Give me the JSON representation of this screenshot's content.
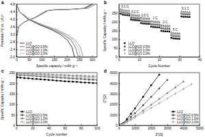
{
  "chart_data": [
    {
      "type": "line",
      "title": "a",
      "x_label": "Specific capacity / mAh g⁻¹",
      "y_label": "Potential / V vs. Li/Li⁺",
      "xlim": [
        0,
        320
      ],
      "xticks": [
        0,
        50,
        100,
        150,
        200,
        250,
        300
      ],
      "ylim": [
        2.0,
        4.8
      ],
      "yticks": [
        {
          "value": 2.0,
          "label": "2.0"
        },
        2.4,
        2.8,
        3.2,
        3.6,
        {
          "value": 4.0,
          "label": "4.0"
        },
        4.4,
        4.8
      ],
      "legend": "lower left",
      "series": [
        {
          "name": "LLO",
          "color": "#000000",
          "charge_x": [
            0,
            9,
            30,
            75,
            120,
            150,
            210,
            270,
            300
          ],
          "charge_values": [
            3.0,
            3.6,
            3.85,
            4.1,
            4.45,
            4.5,
            4.52,
            4.58,
            4.8
          ],
          "discharge_x": [
            0,
            12,
            46,
            92,
            138,
            173,
            202,
            221,
            230
          ],
          "discharge_values": [
            4.8,
            4.4,
            4.0,
            3.7,
            3.45,
            3.2,
            2.9,
            2.5,
            2.0
          ]
        },
        {
          "name": "LLO@GO 0.5%",
          "color": "#4d4d4d",
          "charge_x": [
            0,
            9,
            31,
            76,
            122,
            153,
            214,
            275,
            305
          ],
          "charge_values": [
            3.0,
            3.6,
            3.85,
            4.1,
            4.45,
            4.5,
            4.52,
            4.58,
            4.8
          ],
          "discharge_x": [
            0,
            12,
            49,
            98,
            147,
            184,
            216,
            235,
            245
          ],
          "discharge_values": [
            4.8,
            4.4,
            4.0,
            3.7,
            3.45,
            3.2,
            2.9,
            2.5,
            2.0
          ]
        },
        {
          "name": "LLO@GO 1.0%",
          "color": "#7f7f7f",
          "charge_x": [
            0,
            9,
            32,
            79,
            126,
            158,
            221,
            284,
            315
          ],
          "charge_values": [
            3.0,
            3.6,
            3.85,
            4.1,
            4.45,
            4.5,
            4.52,
            4.58,
            4.8
          ],
          "discharge_x": [
            0,
            13,
            53,
            106,
            159,
            199,
            233,
            254,
            265
          ],
          "discharge_values": [
            4.8,
            4.4,
            4.0,
            3.7,
            3.45,
            3.2,
            2.9,
            2.5,
            2.0
          ]
        },
        {
          "name": "LLO@GO 2.0%",
          "color": "#b0b0b0",
          "charge_x": [
            0,
            9,
            30,
            74,
            118,
            148,
            207,
            266,
            295
          ],
          "charge_values": [
            3.0,
            3.6,
            3.85,
            4.1,
            4.45,
            4.5,
            4.52,
            4.58,
            4.8
          ],
          "discharge_x": [
            0,
            13,
            51,
            102,
            153,
            191,
            224,
            245,
            255
          ],
          "discharge_values": [
            4.8,
            4.4,
            4.0,
            3.7,
            3.45,
            3.2,
            2.9,
            2.5,
            2.0
          ]
        }
      ]
    },
    {
      "type": "scatter",
      "title": "b",
      "x_label": "Cycle Number",
      "y_label": "Specific Capacity / mAh g⁻¹",
      "xlim": [
        0,
        40
      ],
      "xticks": [
        0,
        10,
        20,
        30,
        40
      ],
      "ylim": [
        0,
        300
      ],
      "yticks": [
        0,
        50,
        100,
        150,
        200,
        250
      ],
      "legend": "lower left",
      "annotations": [
        "0.1 C",
        "0.2 C",
        "0.5 C",
        "1 C",
        "2 C",
        "5 C",
        "0.1 C"
      ],
      "x": [
        1,
        2,
        3,
        4,
        5,
        6,
        7,
        8,
        9,
        10,
        11,
        12,
        13,
        14,
        15,
        16,
        17,
        18,
        19,
        20,
        21,
        22,
        23,
        24,
        25,
        26,
        27,
        28,
        29,
        30,
        31,
        32,
        33,
        34,
        35
      ],
      "series": [
        {
          "name": "LLO",
          "color": "#000000",
          "marker": "square",
          "values": [
            245,
            240,
            238,
            237,
            236,
            212,
            210,
            209,
            208,
            207,
            192,
            190,
            189,
            188,
            188,
            172,
            170,
            169,
            168,
            168,
            148,
            146,
            145,
            145,
            144,
            108,
            105,
            104,
            103,
            103,
            230,
            228,
            228,
            227,
            227
          ]
        },
        {
          "name": "LLO@GO 0.5%",
          "color": "#4d4d4d",
          "marker": "circle",
          "values": [
            258,
            252,
            250,
            249,
            248,
            224,
            222,
            221,
            220,
            220,
            205,
            203,
            202,
            201,
            201,
            186,
            184,
            183,
            183,
            182,
            163,
            161,
            160,
            160,
            159,
            122,
            119,
            118,
            118,
            117,
            245,
            243,
            243,
            242,
            242
          ]
        },
        {
          "name": "LLO@GO 1.0%",
          "color": "#7f7f7f",
          "marker": "triangle",
          "values": [
            270,
            265,
            263,
            262,
            262,
            240,
            238,
            237,
            236,
            236,
            222,
            220,
            219,
            218,
            218,
            203,
            201,
            200,
            200,
            199,
            180,
            178,
            177,
            177,
            176,
            138,
            135,
            134,
            134,
            133,
            258,
            256,
            256,
            255,
            255
          ]
        },
        {
          "name": "LLO@GO 2.0%",
          "color": "#b0b0b0",
          "marker": "diamond",
          "values": [
            264,
            259,
            257,
            256,
            255,
            232,
            230,
            229,
            228,
            228,
            213,
            211,
            210,
            209,
            209,
            194,
            192,
            191,
            191,
            190,
            171,
            169,
            168,
            168,
            167,
            128,
            125,
            124,
            124,
            123,
            252,
            250,
            250,
            249,
            249
          ]
        }
      ]
    },
    {
      "type": "line",
      "title": "c",
      "x_label": "Cycle number",
      "y_label": "Specific Capacity / mAh g⁻¹",
      "xlim": [
        0,
        100
      ],
      "xticks": [
        0,
        20,
        40,
        60,
        80,
        100
      ],
      "ylim": [
        0,
        250
      ],
      "yticks": [
        0,
        50,
        100,
        150,
        200,
        250
      ],
      "legend": "lower left",
      "x": [
        1,
        5,
        10,
        15,
        20,
        25,
        30,
        35,
        40,
        45,
        50,
        55,
        60,
        65,
        70,
        75,
        80,
        85,
        90,
        95,
        100
      ],
      "series": [
        {
          "name": "LLO",
          "color": "#000000",
          "marker": "square",
          "values": [
            228,
            226,
            224,
            223,
            221,
            220,
            218,
            217,
            215,
            214,
            212,
            211,
            209,
            208,
            207,
            206,
            204,
            203,
            202,
            201,
            200
          ]
        },
        {
          "name": "LLO@GO 0.5%",
          "color": "#4d4d4d",
          "marker": "circle",
          "values": [
            240,
            238,
            237,
            236,
            235,
            233,
            232,
            231,
            230,
            228,
            227,
            226,
            225,
            223,
            222,
            221,
            220,
            219,
            217,
            216,
            215
          ]
        },
        {
          "name": "LLO@GO 1.0%",
          "color": "#7f7f7f",
          "marker": "triangle",
          "values": [
            248,
            247,
            246,
            245,
            244,
            243,
            243,
            242,
            241,
            240,
            239,
            239,
            238,
            237,
            236,
            236,
            235,
            234,
            233,
            233,
            232
          ]
        },
        {
          "name": "LLO@GO 2.0%",
          "color": "#b0b0b0",
          "marker": "diamond",
          "values": [
            244,
            243,
            241,
            240,
            239,
            238,
            237,
            236,
            234,
            233,
            232,
            231,
            230,
            229,
            228,
            228,
            227,
            226,
            225,
            225,
            224
          ]
        }
      ]
    },
    {
      "type": "line",
      "title": "d",
      "x_label": "Z'(Ω)",
      "y_label": "-Z''(Ω)",
      "xlim": [
        0,
        5000
      ],
      "xticks": [
        0,
        1000,
        2000,
        3000,
        4000,
        5000
      ],
      "ylim": [
        0,
        5000
      ],
      "yticks": [
        0,
        1000,
        2000,
        3000,
        4000,
        5000
      ],
      "legend": "lower right",
      "x": [
        100,
        200,
        300,
        500,
        750,
        1000,
        1500,
        2000,
        2500,
        3000,
        3500,
        4000,
        4500
      ],
      "series": [
        {
          "name": "LLO",
          "color": "#000000",
          "marker": "square",
          "values": [
            80,
            150,
            250,
            600,
            1100,
            1600,
            2700,
            3800,
            4800,
            null,
            null,
            null,
            null
          ]
        },
        {
          "name": "LLO@GO 0.5%",
          "color": "#4d4d4d",
          "marker": "circle",
          "values": [
            60,
            120,
            200,
            450,
            800,
            1150,
            1900,
            2700,
            3500,
            4300,
            null,
            null,
            null
          ]
        },
        {
          "name": "LLO@GO 1.0%",
          "color": "#7f7f7f",
          "marker": "triangle",
          "values": [
            50,
            100,
            160,
            350,
            600,
            850,
            1400,
            1950,
            2500,
            3050,
            3600,
            4150,
            null
          ]
        },
        {
          "name": "LLO@GO 2.0%",
          "color": "#b0b0b0",
          "marker": "diamond",
          "values": [
            40,
            90,
            140,
            300,
            520,
            750,
            1200,
            1650,
            2100,
            2550,
            3000,
            3450,
            3900
          ]
        }
      ]
    }
  ]
}
